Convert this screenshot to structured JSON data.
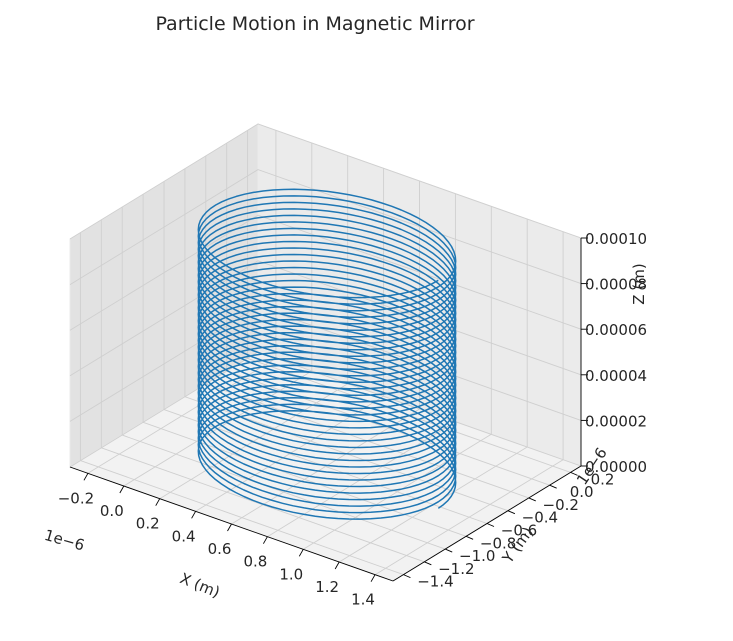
{
  "chart_data": {
    "type": "line3d",
    "title": "Particle Motion in Magnetic Mirror",
    "xlabel": "X (m)",
    "ylabel": "Y (m)",
    "zlabel": "Z (m)",
    "x_offset_label": "1e−6",
    "y_offset_label": "1e−6",
    "x_ticks": [
      "−0.2",
      "0.0",
      "0.2",
      "0.4",
      "0.6",
      "0.8",
      "1.0",
      "1.2",
      "1.4"
    ],
    "y_ticks": [
      "−1.4",
      "−1.2",
      "−1.0",
      "−0.8",
      "−0.6",
      "−0.4",
      "−0.2",
      "0.0",
      "0.2"
    ],
    "z_ticks": [
      "0.00000",
      "0.00002",
      "0.00004",
      "0.00006",
      "0.00008",
      "0.00010"
    ],
    "xlim": [
      -3e-07,
      1.5e-06
    ],
    "ylim": [
      -1.5e-06,
      3e-07
    ],
    "zlim": [
      0,
      0.0001
    ],
    "grid": true,
    "series": [
      {
        "color": "#1f77b4",
        "shape": "helix",
        "center_x": 6.2e-07,
        "center_y": -6.2e-07,
        "radius": 6.2e-07,
        "z_start": 0.0,
        "z_end": 0.0001,
        "turns": 35
      }
    ]
  }
}
